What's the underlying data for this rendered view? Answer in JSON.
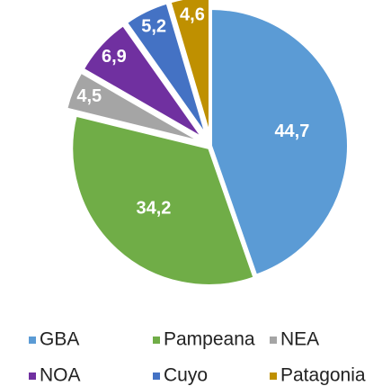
{
  "chart_data": {
    "type": "pie",
    "categories": [
      "GBA",
      "Pampeana",
      "NEA",
      "NOA",
      "Cuyo",
      "Patagonia"
    ],
    "values": [
      44.7,
      34.2,
      4.5,
      6.9,
      5.2,
      4.6
    ],
    "value_labels": [
      "44,7",
      "34,2",
      "4,5",
      "6,9",
      "5,2",
      "4,6"
    ],
    "colors": [
      "#5b9bd5",
      "#70ad47",
      "#a5a5a5",
      "#7030a0",
      "#4472c4",
      "#bf9000"
    ],
    "legend": "bottom"
  }
}
